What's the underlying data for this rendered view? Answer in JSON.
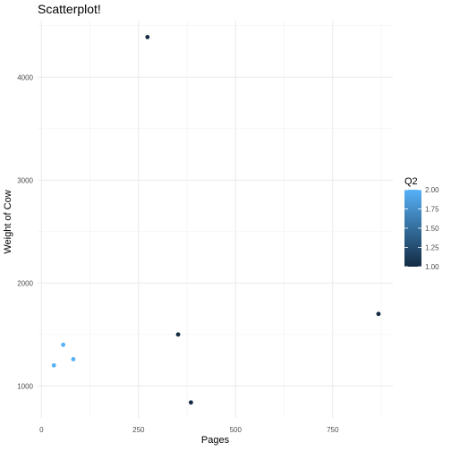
{
  "chart_data": {
    "type": "scatter",
    "title": "Scatterplot!",
    "xlabel": "Pages",
    "ylabel": "Weight of Cow",
    "xlim": [
      -10,
      905
    ],
    "ylim": [
      690,
      4550
    ],
    "x_ticks": [
      0,
      250,
      500,
      750
    ],
    "x_tick_labels": [
      "0",
      "250",
      "500",
      "750"
    ],
    "y_ticks": [
      1000,
      2000,
      3000,
      4000
    ],
    "y_tick_labels": [
      "1000",
      "2000",
      "3000",
      "4000"
    ],
    "grid": true,
    "points": [
      {
        "x": 273,
        "y": 4390,
        "color_value": 1.0
      },
      {
        "x": 352,
        "y": 1500,
        "color_value": 1.0
      },
      {
        "x": 385,
        "y": 840,
        "color_value": 1.0
      },
      {
        "x": 868,
        "y": 1700,
        "color_value": 1.0
      },
      {
        "x": 32,
        "y": 1200,
        "color_value": 2.0
      },
      {
        "x": 56,
        "y": 1400,
        "color_value": 2.0
      },
      {
        "x": 82,
        "y": 1260,
        "color_value": 2.0
      }
    ],
    "legend": {
      "title": "Q2",
      "placement": "right",
      "range": [
        1.0,
        2.0
      ],
      "ticks": [
        1.0,
        1.25,
        1.5,
        1.75,
        2.0
      ],
      "tick_labels": [
        "1.00",
        "1.25",
        "1.50",
        "1.75",
        "2.00"
      ],
      "low_color": "#132B43",
      "high_color": "#56B1F7"
    }
  }
}
